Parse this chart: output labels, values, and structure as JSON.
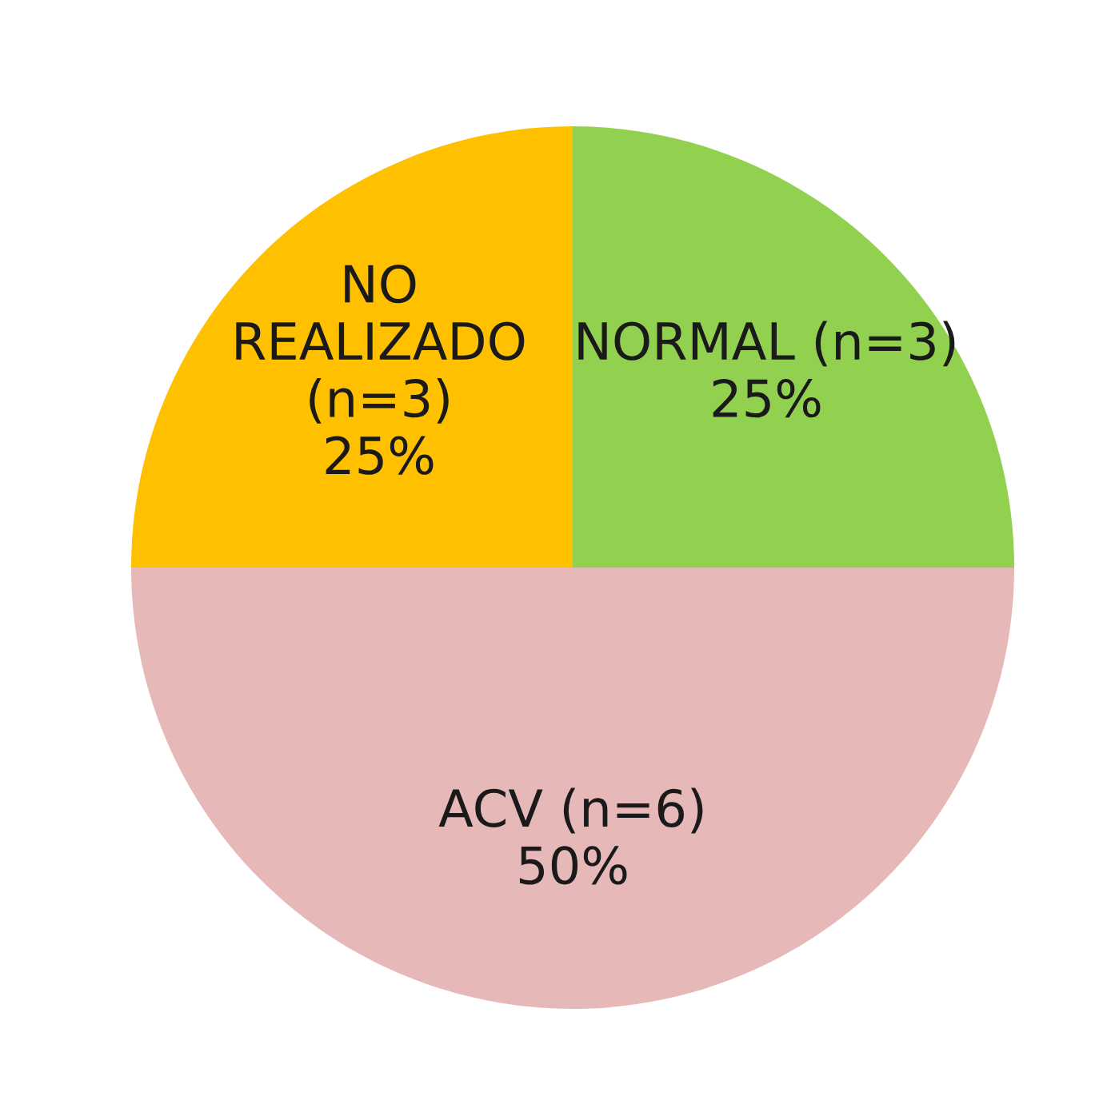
{
  "chart_data": {
    "type": "pie",
    "categories": [
      "NORMAL (n=3)",
      "ACV (n=6)",
      "NO\nREALIZADO\n(n=3)"
    ],
    "values": [
      25,
      50,
      25
    ],
    "value_labels": [
      "25%",
      "50%",
      "25%"
    ],
    "colors": [
      "#92d050",
      "#e6b8b7",
      "#ffc000"
    ]
  }
}
